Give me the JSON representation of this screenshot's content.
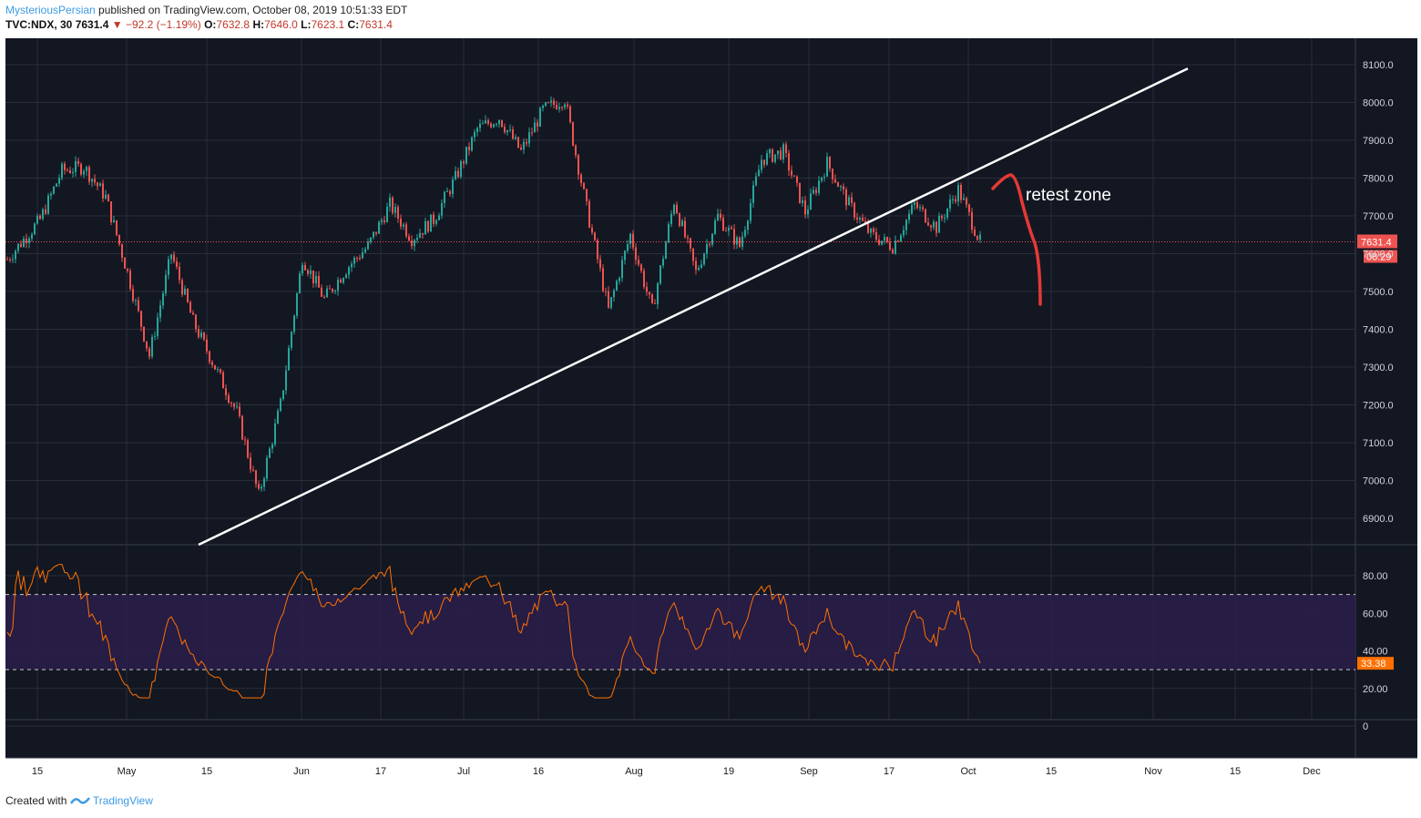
{
  "header": {
    "author": "MysteriousPersian",
    "published_text": "published on TradingView.com, October 08, 2019 10:51:33 EDT",
    "symbol": "TVC:NDX, 30",
    "last": "7631.4",
    "change": "−92.2 (−1.19%)",
    "o_label": "O:",
    "o_value": "7632.8",
    "h_label": "H:",
    "h_value": "7646.0",
    "l_label": "L:",
    "l_value": "7623.1",
    "c_label": "C:",
    "c_value": "7631.4"
  },
  "footer": {
    "created_with": "Created with",
    "brand": "TradingView"
  },
  "colors": {
    "background": "#131722",
    "grid": "#2a2e39",
    "candle_up": "#26a69a",
    "candle_down": "#ef5350",
    "price_line": "#ef5350",
    "trendline": "#ffffff",
    "annotation": "#e53935",
    "rsi_line": "#ff7000",
    "rsi_band": "#2a1d4a",
    "axis_text": "#d1d4dc"
  },
  "annotation": {
    "text": "retest zone"
  },
  "price_badge": {
    "value": "7631.4",
    "countdown": "08:29"
  },
  "rsi_badge": {
    "value": "33.38"
  },
  "chart_data": [
    {
      "type": "candlestick",
      "title": "TVC:NDX, 30",
      "y_ticks": [
        "8100.0",
        "8000.0",
        "7900.0",
        "7800.0",
        "7700.0",
        "7600.0",
        "7500.0",
        "7400.0",
        "7300.0",
        "7200.0",
        "7100.0",
        "7000.0",
        "6900.0"
      ],
      "ylim": [
        6830,
        8170
      ],
      "x_ticks": [
        "15",
        "May",
        "15",
        "Jun",
        "17",
        "Jul",
        "16",
        "Aug",
        "19",
        "Sep",
        "17",
        "Oct",
        "15",
        "Nov",
        "15",
        "Dec"
      ],
      "last_price": 7631.4,
      "approx_path": [
        [
          0,
          7585
        ],
        [
          3,
          7690
        ],
        [
          5,
          7820
        ],
        [
          7,
          7830
        ],
        [
          9,
          7750
        ],
        [
          11,
          7550
        ],
        [
          13,
          7330
        ],
        [
          15,
          7600
        ],
        [
          17,
          7420
        ],
        [
          19,
          7300
        ],
        [
          21,
          7180
        ],
        [
          23,
          6960
        ],
        [
          25,
          7200
        ],
        [
          27,
          7590
        ],
        [
          29,
          7480
        ],
        [
          31,
          7560
        ],
        [
          33,
          7620
        ],
        [
          35,
          7730
        ],
        [
          37,
          7640
        ],
        [
          39,
          7690
        ],
        [
          41,
          7800
        ],
        [
          43,
          7930
        ],
        [
          45,
          7960
        ],
        [
          47,
          7870
        ],
        [
          49,
          7980
        ],
        [
          51,
          8010
        ],
        [
          53,
          7720
        ],
        [
          55,
          7450
        ],
        [
          57,
          7650
        ],
        [
          59,
          7450
        ],
        [
          61,
          7740
        ],
        [
          63,
          7550
        ],
        [
          65,
          7700
        ],
        [
          67,
          7620
        ],
        [
          69,
          7850
        ],
        [
          71,
          7870
        ],
        [
          73,
          7710
        ],
        [
          75,
          7840
        ],
        [
          77,
          7730
        ],
        [
          79,
          7650
        ],
        [
          81,
          7620
        ],
        [
          83,
          7730
        ],
        [
          85,
          7670
        ],
        [
          87,
          7770
        ],
        [
          89,
          7631
        ]
      ],
      "trendline": [
        [
          17.5,
          6830
        ],
        [
          108,
          8090
        ]
      ],
      "annotation_curve": "arrow pointing down after retest of trendline"
    },
    {
      "type": "line",
      "title": "RSI",
      "y_ticks": [
        "80.00",
        "60.00",
        "40.00",
        "20.00",
        "0"
      ],
      "band": [
        30,
        70
      ],
      "last_value": 33.38
    }
  ]
}
